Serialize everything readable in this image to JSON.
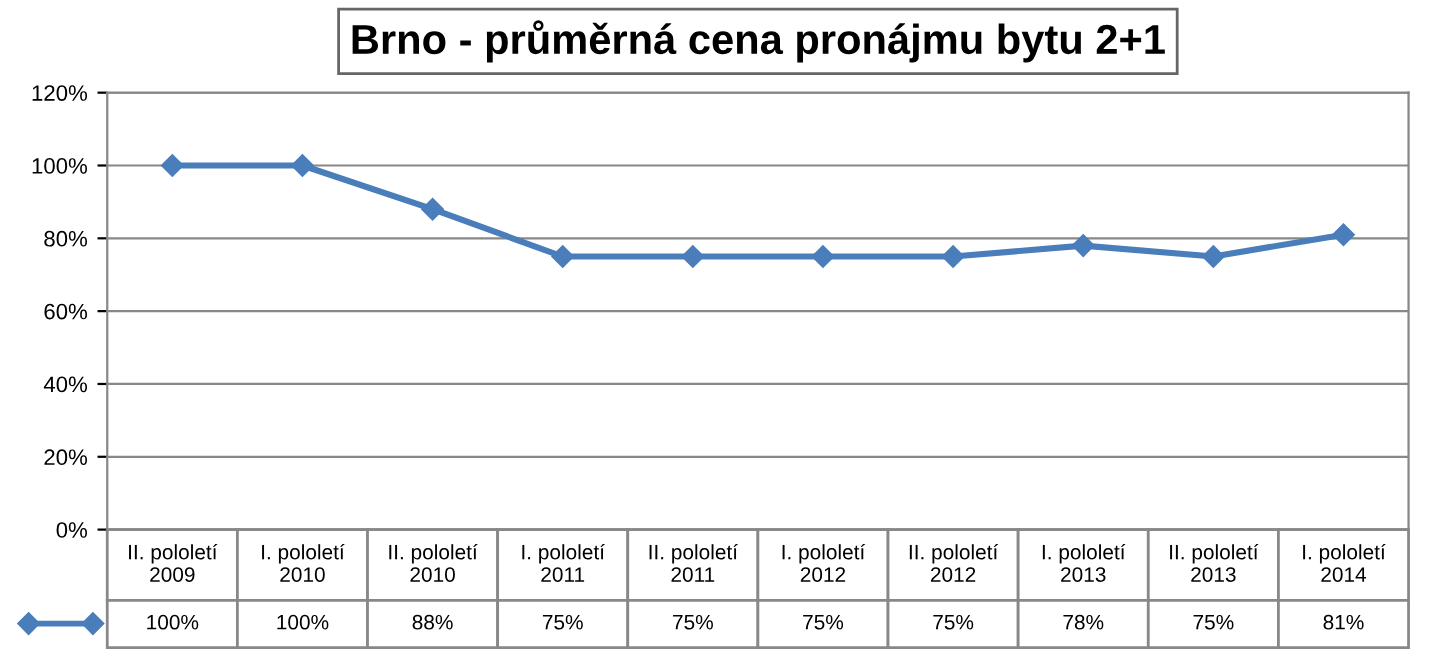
{
  "chart_data": {
    "type": "line",
    "title": "Brno - průměrná cena pronájmu bytu 2+1",
    "categories": [
      "II. pololetí\n2009",
      "I. pololetí\n2010",
      "II. pololetí\n2010",
      "I. pololetí\n2011",
      "II. pololetí\n2011",
      "I. pololetí\n2012",
      "II. pololetí\n2012",
      "I. pololetí\n2013",
      "II. pololetí\n2013",
      "I. pololetí\n2014"
    ],
    "values": [
      100,
      100,
      88,
      75,
      75,
      75,
      75,
      78,
      75,
      81
    ],
    "value_labels": [
      "100%",
      "100%",
      "88%",
      "75%",
      "75%",
      "75%",
      "75%",
      "78%",
      "75%",
      "81%"
    ],
    "color": "#4a7ebb",
    "marker": "diamond",
    "line_style": "solid",
    "ylim": [
      0,
      120
    ],
    "yticks": [
      {
        "value": 0,
        "label": "0%"
      },
      {
        "value": 20,
        "label": "20%"
      },
      {
        "value": 40,
        "label": "40%"
      },
      {
        "value": 60,
        "label": "60%"
      },
      {
        "value": 80,
        "label": "80%"
      },
      {
        "value": 100,
        "label": "100%"
      },
      {
        "value": 120,
        "label": "120%"
      }
    ],
    "grid": "y",
    "legend": false
  }
}
